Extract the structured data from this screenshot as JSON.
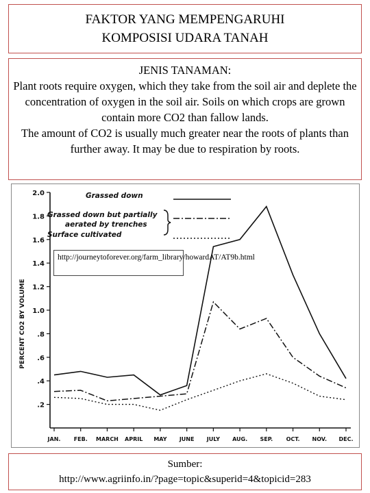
{
  "title": {
    "line1": "FAKTOR YANG MEMPENGARUHI",
    "line2": "KOMPOSISI UDARA TANAH"
  },
  "text": {
    "heading": "JENIS TANAMAN:",
    "para1": "Plant roots require oxygen, which they take from the soil air and deplete the concentration of oxygen in the soil air. Soils on which crops are grown contain more CO2 than fallow lands.",
    "para2": "The amount of CO2 is usually much greater near the roots of plants than further away. It may be due to respiration by roots."
  },
  "chart_url": "http://journeytoforever.org/farm_library/howardAT/AT9b.html",
  "source": {
    "label": "Sumber:",
    "url": "http://www.agriinfo.in/?page=topic&superid=4&topicid=283"
  },
  "chart_data": {
    "type": "line",
    "categories": [
      "JAN.",
      "FEB.",
      "MARCH",
      "APRIL",
      "MAY",
      "JUNE",
      "JULY",
      "AUG.",
      "SEP.",
      "OCT.",
      "NOV.",
      "DEC."
    ],
    "ylabel": "PERCENT CO2 BY VOLUME",
    "ylim": [
      0,
      2.0
    ],
    "yticks": [
      "2.0",
      "1.8",
      "1.6",
      "1.4",
      "1.2",
      "1.0",
      ".8",
      ".6",
      ".4",
      ".2"
    ],
    "ytick_values": [
      2.0,
      1.8,
      1.6,
      1.4,
      1.2,
      1.0,
      0.8,
      0.6,
      0.4,
      0.2
    ],
    "legend_position": "top",
    "legend_line2": "aerated by trenches",
    "series": [
      {
        "name": "Grassed down",
        "style": "solid",
        "values": [
          0.45,
          0.48,
          0.43,
          0.45,
          0.28,
          0.36,
          1.54,
          1.6,
          1.88,
          1.3,
          0.8,
          0.42
        ]
      },
      {
        "name": "Grassed down but partially",
        "style": "dashdot",
        "values": [
          0.31,
          0.32,
          0.23,
          0.25,
          0.27,
          0.29,
          1.07,
          0.84,
          0.93,
          0.6,
          0.44,
          0.34
        ]
      },
      {
        "name": "Surface cultivated",
        "style": "dotted",
        "values": [
          0.26,
          0.25,
          0.2,
          0.2,
          0.15,
          0.24,
          0.32,
          0.4,
          0.46,
          0.38,
          0.27,
          0.24
        ]
      }
    ],
    "colors": {
      "line": "#111111",
      "box_border": "#c0504d"
    }
  }
}
